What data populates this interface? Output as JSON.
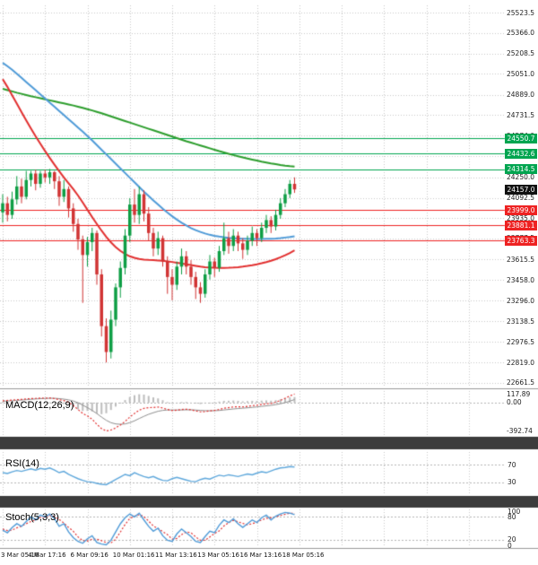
{
  "chart_data": {
    "type": "candlestick",
    "price_axis_ticks": [
      "25523.5",
      "25366.0",
      "25208.5",
      "25051.0",
      "24889.0",
      "24731.5",
      "24574.0",
      "24416.5",
      "24250.0",
      "24092.5",
      "23935.0",
      "23777.5",
      "23615.5",
      "23458.0",
      "23296.0",
      "23138.5",
      "22976.5",
      "22819.0",
      "22661.5"
    ],
    "resistance_levels": [
      "24550.7",
      "24432.6",
      "24314.5"
    ],
    "support_levels": [
      "23999.0",
      "23881.1",
      "23763.3"
    ],
    "current_price": "24157.0",
    "x_labels": [
      "3 Mar 05:16",
      "4 Mar 17:16",
      "6 Mar 09:16",
      "10 Mar 01:16",
      "11 Mar 13:16",
      "13 Mar 05:16",
      "16 Mar 13:16",
      "18 Mar 05:16"
    ],
    "candles_ohlc": [
      [
        23980,
        24120,
        23900,
        24050
      ],
      [
        24050,
        24100,
        23910,
        23960
      ],
      [
        23960,
        24140,
        23930,
        24080
      ],
      [
        24080,
        24260,
        24040,
        24180
      ],
      [
        24180,
        24240,
        24050,
        24100
      ],
      [
        24100,
        24300,
        24080,
        24230
      ],
      [
        24230,
        24300,
        24180,
        24280
      ],
      [
        24280,
        24310,
        24150,
        24200
      ],
      [
        24200,
        24300,
        24170,
        24280
      ],
      [
        24280,
        24310,
        24210,
        24250
      ],
      [
        24250,
        24315,
        24200,
        24290
      ],
      [
        24290,
        24300,
        24160,
        24220
      ],
      [
        24220,
        24260,
        24030,
        24100
      ],
      [
        24100,
        24230,
        24060,
        24160
      ],
      [
        24160,
        24180,
        23940,
        24010
      ],
      [
        24010,
        24050,
        23830,
        23890
      ],
      [
        23890,
        23930,
        23690,
        23770
      ],
      [
        23770,
        23800,
        23280,
        23650
      ],
      [
        23650,
        23790,
        23560,
        23750
      ],
      [
        23750,
        23860,
        23680,
        23820
      ],
      [
        23820,
        23840,
        23420,
        23500
      ],
      [
        23500,
        23540,
        23020,
        23100
      ],
      [
        23100,
        23160,
        22819,
        22900
      ],
      [
        22900,
        23220,
        22850,
        23150
      ],
      [
        23150,
        23430,
        23100,
        23400
      ],
      [
        23400,
        23600,
        23320,
        23550
      ],
      [
        23550,
        23850,
        23500,
        23800
      ],
      [
        23800,
        24090,
        23750,
        24040
      ],
      [
        24040,
        24160,
        23900,
        23960
      ],
      [
        23960,
        24180,
        23890,
        24120
      ],
      [
        24120,
        24150,
        23910,
        23970
      ],
      [
        23970,
        24020,
        23760,
        23820
      ],
      [
        23820,
        23860,
        23640,
        23700
      ],
      [
        23700,
        23830,
        23650,
        23780
      ],
      [
        23780,
        23800,
        23560,
        23600
      ],
      [
        23600,
        23640,
        23350,
        23480
      ],
      [
        23480,
        23540,
        23300,
        23420
      ],
      [
        23420,
        23600,
        23380,
        23560
      ],
      [
        23560,
        23700,
        23500,
        23640
      ],
      [
        23640,
        23680,
        23500,
        23560
      ],
      [
        23560,
        23610,
        23420,
        23480
      ],
      [
        23480,
        23520,
        23310,
        23400
      ],
      [
        23400,
        23440,
        23280,
        23350
      ],
      [
        23350,
        23540,
        23320,
        23500
      ],
      [
        23500,
        23650,
        23460,
        23600
      ],
      [
        23600,
        23630,
        23480,
        23550
      ],
      [
        23550,
        23720,
        23520,
        23680
      ],
      [
        23680,
        23900,
        23650,
        23780
      ],
      [
        23780,
        23830,
        23660,
        23720
      ],
      [
        23720,
        23850,
        23680,
        23800
      ],
      [
        23800,
        23830,
        23680,
        23740
      ],
      [
        23740,
        23780,
        23620,
        23690
      ],
      [
        23690,
        23800,
        23650,
        23760
      ],
      [
        23760,
        23870,
        23720,
        23820
      ],
      [
        23820,
        23850,
        23720,
        23780
      ],
      [
        23780,
        23900,
        23750,
        23860
      ],
      [
        23860,
        23960,
        23820,
        23920
      ],
      [
        23920,
        23950,
        23820,
        23870
      ],
      [
        23870,
        24000,
        23840,
        23960
      ],
      [
        23960,
        24090,
        23930,
        24050
      ],
      [
        24050,
        24160,
        24020,
        24120
      ],
      [
        24120,
        24230,
        24090,
        24200
      ],
      [
        24200,
        24250,
        24130,
        24157
      ]
    ],
    "moving_averages": {
      "green": [
        24935,
        24925,
        24915,
        24905,
        24896,
        24887,
        24878,
        24870,
        24862,
        24854,
        24846,
        24838,
        24830,
        24822,
        24814,
        24806,
        24797,
        24788,
        24778,
        24768,
        24757,
        24746,
        24734,
        24722,
        24710,
        24698,
        24686,
        24674,
        24662,
        24650,
        24638,
        24626,
        24614,
        24602,
        24590,
        24578,
        24566,
        24554,
        24542,
        24530,
        24519,
        24508,
        24497,
        24486,
        24475,
        24464,
        24453,
        24443,
        24433,
        24423,
        24414,
        24405,
        24396,
        24388,
        24380,
        24372,
        24365,
        24358,
        24352,
        24346,
        24341,
        24337,
        24334
      ],
      "blue": [
        25135,
        25110,
        25082,
        25052,
        25020,
        24988,
        24956,
        24924,
        24892,
        24860,
        24828,
        24796,
        24764,
        24732,
        24700,
        24668,
        24636,
        24604,
        24570,
        24536,
        24500,
        24464,
        24428,
        24392,
        24356,
        24320,
        24284,
        24248,
        24212,
        24176,
        24140,
        24106,
        24072,
        24040,
        24008,
        23978,
        23950,
        23924,
        23900,
        23878,
        23858,
        23842,
        23828,
        23816,
        23806,
        23798,
        23792,
        23787,
        23783,
        23780,
        23778,
        23776,
        23775,
        23774,
        23774,
        23774,
        23775,
        23776,
        23778,
        23781,
        23785,
        23789,
        23794
      ],
      "red": [
        25010,
        24950,
        24885,
        24820,
        24755,
        24690,
        24628,
        24568,
        24510,
        24454,
        24400,
        24348,
        24298,
        24250,
        24204,
        24160,
        24110,
        24056,
        24000,
        23944,
        23890,
        23838,
        23790,
        23748,
        23712,
        23682,
        23658,
        23640,
        23628,
        23620,
        23615,
        23612,
        23610,
        23608,
        23605,
        23601,
        23596,
        23590,
        23584,
        23578,
        23572,
        23566,
        23560,
        23556,
        23553,
        23551,
        23550,
        23550,
        23551,
        23553,
        23556,
        23560,
        23565,
        23571,
        23578,
        23586,
        23595,
        23606,
        23618,
        23632,
        23648,
        23666,
        23686
      ]
    },
    "macd": {
      "label": "MACD(12,26,9)",
      "axis_labels": [
        "117.89",
        "0.00",
        "-392.74"
      ],
      "macd_line": [
        25,
        30,
        34,
        40,
        44,
        50,
        56,
        58,
        62,
        60,
        64,
        55,
        40,
        28,
        5,
        -40,
        -95,
        -150,
        -185,
        -230,
        -300,
        -360,
        -392,
        -380,
        -350,
        -310,
        -260,
        -200,
        -150,
        -105,
        -80,
        -70,
        -68,
        -62,
        -75,
        -95,
        -110,
        -105,
        -95,
        -92,
        -100,
        -115,
        -128,
        -125,
        -115,
        -108,
        -95,
        -78,
        -70,
        -60,
        -58,
        -60,
        -52,
        -42,
        -38,
        -25,
        -15,
        -12,
        5,
        30,
        60,
        92,
        118
      ],
      "signal_line": [
        18,
        22,
        26,
        30,
        35,
        40,
        45,
        50,
        54,
        57,
        60,
        60,
        55,
        48,
        38,
        22,
        -2,
        -35,
        -70,
        -108,
        -152,
        -200,
        -245,
        -278,
        -295,
        -300,
        -295,
        -278,
        -252,
        -220,
        -190,
        -162,
        -140,
        -120,
        -108,
        -102,
        -102,
        -103,
        -102,
        -100,
        -100,
        -103,
        -108,
        -112,
        -113,
        -112,
        -109,
        -102,
        -95,
        -88,
        -82,
        -77,
        -72,
        -66,
        -60,
        -52,
        -45,
        -38,
        -28,
        -16,
        0,
        20,
        42
      ],
      "histogram": [
        7,
        8,
        8,
        10,
        9,
        10,
        11,
        8,
        8,
        3,
        4,
        -5,
        -15,
        -20,
        -33,
        -62,
        -93,
        -115,
        -115,
        -122,
        -148,
        -160,
        -147,
        -102,
        -55,
        -10,
        35,
        78,
        102,
        115,
        110,
        92,
        72,
        58,
        33,
        7,
        -8,
        -2,
        7,
        8,
        0,
        -12,
        -20,
        -13,
        -2,
        4,
        14,
        24,
        25,
        28,
        24,
        17,
        20,
        24,
        22,
        27,
        30,
        26,
        33,
        46,
        60,
        72,
        76
      ]
    },
    "rsi": {
      "label": "RSI(14)",
      "axis_labels": [
        "70",
        "30"
      ],
      "values": [
        52,
        50,
        54,
        57,
        55,
        58,
        61,
        58,
        62,
        60,
        63,
        58,
        52,
        55,
        48,
        43,
        38,
        34,
        31,
        30,
        27,
        25,
        24,
        30,
        36,
        42,
        48,
        45,
        52,
        47,
        43,
        40,
        43,
        38,
        34,
        33,
        38,
        41,
        38,
        35,
        32,
        31,
        36,
        39,
        37,
        42,
        46,
        44,
        47,
        45,
        43,
        46,
        49,
        47,
        51,
        54,
        52,
        56,
        60,
        63,
        64,
        66,
        65
      ]
    },
    "stoch": {
      "label": "Stoch(5,3,3)",
      "axis_labels": [
        "100",
        "80",
        "20",
        "0"
      ],
      "k": [
        45,
        38,
        52,
        62,
        55,
        68,
        80,
        72,
        85,
        80,
        88,
        75,
        55,
        62,
        40,
        25,
        15,
        10,
        22,
        30,
        12,
        8,
        6,
        18,
        40,
        62,
        78,
        88,
        80,
        90,
        72,
        55,
        42,
        50,
        30,
        18,
        15,
        35,
        48,
        38,
        28,
        15,
        12,
        28,
        42,
        38,
        58,
        72,
        65,
        75,
        62,
        52,
        62,
        72,
        65,
        78,
        85,
        72,
        82,
        88,
        92,
        90,
        86
      ],
      "d": [
        48,
        44,
        45,
        51,
        56,
        62,
        68,
        72,
        79,
        79,
        84,
        81,
        73,
        64,
        52,
        42,
        27,
        17,
        16,
        21,
        21,
        17,
        12,
        11,
        21,
        40,
        60,
        76,
        82,
        86,
        81,
        69,
        56,
        49,
        41,
        33,
        21,
        23,
        33,
        40,
        38,
        27,
        18,
        18,
        27,
        36,
        43,
        56,
        65,
        71,
        67,
        63,
        59,
        62,
        66,
        72,
        76,
        78,
        80,
        84,
        87,
        90,
        89
      ]
    },
    "colors": {
      "background": "#ffffff",
      "grid": "#c8c8c8",
      "guide": "#b5b5b5",
      "bull_candle": "#0e9e45",
      "bear_candle": "#d13434",
      "ma_slow_green": "#2d9e2d",
      "ma_mid_blue": "#4f9bd8",
      "ma_fast_red": "#e23030",
      "resistance_line": "#00a550",
      "support_line": "#ee2222",
      "current_price_bg": "#111111",
      "axis_text": "#222222",
      "macd_hist": "#bdbdbd",
      "macd_line": "#e23030",
      "macd_signal": "#909090",
      "rsi_line": "#5fa8dc",
      "stoch_k": "#4f9bd8",
      "stoch_d": "#e23031",
      "separator": "#3c3c3c",
      "panel_border": "#999999"
    }
  }
}
